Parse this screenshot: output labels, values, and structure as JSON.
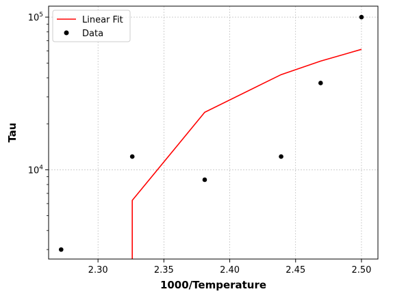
{
  "chart_data": {
    "type": "scatter",
    "xlabel": "1000/Temperature",
    "ylabel": "Tau",
    "xlim": [
      2.2625,
      2.5125
    ],
    "ylim": [
      2600,
      118000
    ],
    "yscale": "log",
    "grid": true,
    "legend_position": "top-left",
    "x_ticks": [
      2.3,
      2.35,
      2.4,
      2.45,
      2.5
    ],
    "x_tick_labels": [
      "2.30",
      "2.35",
      "2.40",
      "2.45",
      "2.50"
    ],
    "y_ticks": [
      {
        "value": 10000,
        "base": "10",
        "exp": "4"
      },
      {
        "value": 100000,
        "base": "10",
        "exp": "5"
      }
    ],
    "series": [
      {
        "name": "Linear Fit",
        "kind": "line",
        "color": "#ff0000",
        "x": [
          2.326,
          2.326,
          2.381,
          2.439,
          2.469,
          2.5
        ],
        "y": [
          2600,
          6300,
          23800,
          42000,
          51500,
          61500
        ]
      },
      {
        "name": "Data",
        "kind": "scatter",
        "color": "#000000",
        "x": [
          2.272,
          2.326,
          2.381,
          2.439,
          2.469,
          2.5
        ],
        "y": [
          3000,
          12200,
          8600,
          12200,
          37000,
          100000
        ]
      }
    ]
  }
}
